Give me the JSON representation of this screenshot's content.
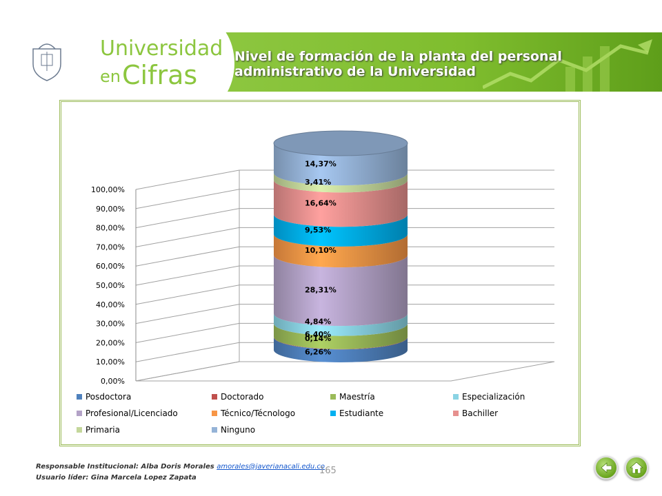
{
  "header": {
    "brand_line1": "Universidad",
    "brand_en": "en",
    "brand_cifras": "Cifras",
    "crest_text": "Pontificia Universidad JAVERIANA",
    "title_line1": "Nivel de formación de la planta del personal",
    "title_line2": "administrativo de la Universidad"
  },
  "chart_data": {
    "type": "stacked-cylinder",
    "y_ticks": [
      "0,00%",
      "10,00%",
      "20,00%",
      "30,00%",
      "40,00%",
      "50,00%",
      "60,00%",
      "70,00%",
      "80,00%",
      "90,00%",
      "100,00%"
    ],
    "ylim": [
      0,
      100
    ],
    "segments": [
      {
        "name": "Posdoctora",
        "value": 6.26,
        "label": "6,26%",
        "color": "#4f81bd"
      },
      {
        "name": "Doctorado",
        "value": 0.14,
        "label": "0,14%",
        "color": "#c0504d"
      },
      {
        "name": "Maestría",
        "value": 6.4,
        "label": "6,40%",
        "color": "#9bbb59"
      },
      {
        "name": "Especialización",
        "value": 4.84,
        "label": "4,84%",
        "color": "#8ad3e3"
      },
      {
        "name": "Profesional/Licenciado",
        "value": 28.31,
        "label": "28,31%",
        "color": "#b3a2c7"
      },
      {
        "name": "Técnico/Técnologo",
        "value": 10.1,
        "label": "10,10%",
        "color": "#f79646"
      },
      {
        "name": "Estudiante",
        "value": 9.53,
        "label": "9,53%",
        "color": "#00b0f0"
      },
      {
        "name": "Bachiller",
        "value": 16.64,
        "label": "16,64%",
        "color": "#e6908e"
      },
      {
        "name": "Primaria",
        "value": 3.41,
        "label": "3,41%",
        "color": "#c4d79b"
      },
      {
        "name": "Ninguno",
        "value": 14.37,
        "label": "14,37%",
        "color": "#95b3d7"
      }
    ],
    "legend_placement": "bottom"
  },
  "footer": {
    "responsable_label": "Responsable Institucional: Alba Doris Morales",
    "email": "amorales@javerianacali.edu.co",
    "usuario_label": "Usuario líder: Gina Marcela Lopez Zapata",
    "page_number": "165"
  },
  "nav": {
    "back_icon": "back-arrow-icon",
    "home_icon": "home-icon",
    "home_label": "Inicio"
  }
}
